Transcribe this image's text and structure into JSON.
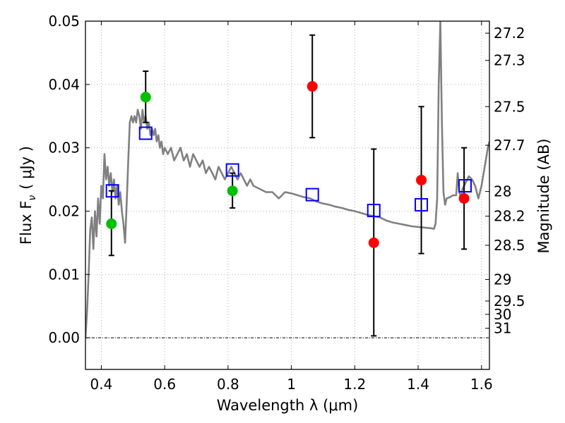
{
  "chart_data": {
    "type": "scatter",
    "title": "",
    "xlabel": "Wavelength  λ (μm)",
    "ylabel": "Flux  F",
    "ylabel_sub": "ν",
    "ylabel_unit": "( μJy )",
    "y2label": "Magnitude (AB)",
    "xlim": [
      0.35,
      1.625
    ],
    "ylim": [
      -0.005,
      0.05
    ],
    "grid": true,
    "x_ticks": [
      {
        "value": 0.4,
        "label": "0.4"
      },
      {
        "value": 0.6,
        "label": "0.6"
      },
      {
        "value": 0.8,
        "label": "0.8"
      },
      {
        "value": 1.0,
        "label": "1"
      },
      {
        "value": 1.2,
        "label": "1.2"
      },
      {
        "value": 1.4,
        "label": "1.4"
      },
      {
        "value": 1.6,
        "label": "1.6"
      }
    ],
    "y_ticks": [
      {
        "value": 0.0,
        "label": "0.00"
      },
      {
        "value": 0.01,
        "label": "0.01"
      },
      {
        "value": 0.02,
        "label": "0.02"
      },
      {
        "value": 0.03,
        "label": "0.03"
      },
      {
        "value": 0.04,
        "label": "0.04"
      },
      {
        "value": 0.05,
        "label": "0.05"
      }
    ],
    "y2_ticks": [
      {
        "label": "27.2",
        "flux": 0.0481
      },
      {
        "label": "27.3",
        "flux": 0.0438
      },
      {
        "label": "27.5",
        "flux": 0.0365
      },
      {
        "label": "27.7",
        "flux": 0.0304
      },
      {
        "label": "28",
        "flux": 0.0231
      },
      {
        "label": "28.2",
        "flux": 0.0192
      },
      {
        "label": "28.5",
        "flux": 0.0146
      },
      {
        "label": "29",
        "flux": 0.0092
      },
      {
        "label": "29.5",
        "flux": 0.0058
      },
      {
        "label": "30",
        "flux": 0.0037
      },
      {
        "label": "31",
        "flux": 0.0015
      }
    ],
    "colors": {
      "model_line": "#808080",
      "hst_points": "#00c000",
      "ir_points": "#ff0000",
      "model_squares": "#0000ff",
      "errorbar": "#000000",
      "grid": "#b0b0b0"
    },
    "model_spectrum": {
      "x": [
        0.35,
        0.355,
        0.36,
        0.365,
        0.37,
        0.375,
        0.38,
        0.385,
        0.39,
        0.395,
        0.4,
        0.405,
        0.41,
        0.415,
        0.42,
        0.425,
        0.43,
        0.435,
        0.44,
        0.445,
        0.45,
        0.455,
        0.46,
        0.465,
        0.47,
        0.475,
        0.48,
        0.485,
        0.49,
        0.495,
        0.5,
        0.505,
        0.51,
        0.515,
        0.52,
        0.525,
        0.53,
        0.535,
        0.54,
        0.545,
        0.55,
        0.555,
        0.56,
        0.565,
        0.57,
        0.575,
        0.58,
        0.585,
        0.59,
        0.595,
        0.6,
        0.61,
        0.62,
        0.63,
        0.64,
        0.65,
        0.66,
        0.67,
        0.68,
        0.69,
        0.7,
        0.71,
        0.72,
        0.73,
        0.74,
        0.75,
        0.76,
        0.77,
        0.78,
        0.79,
        0.8,
        0.81,
        0.82,
        0.83,
        0.84,
        0.85,
        0.86,
        0.87,
        0.88,
        0.9,
        0.92,
        0.94,
        0.96,
        0.98,
        1.0,
        1.02,
        1.04,
        1.06,
        1.08,
        1.1,
        1.12,
        1.14,
        1.16,
        1.18,
        1.2,
        1.22,
        1.24,
        1.26,
        1.28,
        1.3,
        1.32,
        1.34,
        1.36,
        1.38,
        1.4,
        1.42,
        1.44,
        1.45,
        1.455,
        1.46,
        1.465,
        1.47,
        1.475,
        1.48,
        1.485,
        1.49,
        1.5,
        1.51,
        1.52,
        1.525,
        1.53,
        1.535,
        1.54,
        1.55,
        1.56,
        1.57,
        1.58,
        1.59,
        1.6,
        1.61,
        1.62,
        1.625
      ],
      "y": [
        0.0,
        0.004,
        0.01,
        0.017,
        0.019,
        0.014,
        0.02,
        0.016,
        0.022,
        0.018,
        0.024,
        0.022,
        0.029,
        0.025,
        0.027,
        0.024,
        0.026,
        0.023,
        0.025,
        0.022,
        0.024,
        0.021,
        0.023,
        0.02,
        0.018,
        0.015,
        0.021,
        0.028,
        0.034,
        0.035,
        0.034,
        0.035,
        0.034,
        0.036,
        0.035,
        0.033,
        0.036,
        0.034,
        0.035,
        0.033,
        0.034,
        0.032,
        0.033,
        0.032,
        0.033,
        0.031,
        0.032,
        0.03,
        0.031,
        0.029,
        0.03,
        0.029,
        0.03,
        0.028,
        0.029,
        0.03,
        0.028,
        0.029,
        0.027,
        0.029,
        0.028,
        0.027,
        0.028,
        0.026,
        0.027,
        0.026,
        0.025,
        0.027,
        0.026,
        0.025,
        0.026,
        0.027,
        0.026,
        0.025,
        0.026,
        0.025,
        0.024,
        0.025,
        0.024,
        0.0235,
        0.023,
        0.023,
        0.022,
        0.023,
        0.0228,
        0.0225,
        0.0222,
        0.022,
        0.0215,
        0.0212,
        0.021,
        0.0207,
        0.0205,
        0.0202,
        0.02,
        0.0197,
        0.0194,
        0.0192,
        0.019,
        0.0185,
        0.0182,
        0.018,
        0.0178,
        0.0176,
        0.0175,
        0.0174,
        0.0173,
        0.0172,
        0.018,
        0.022,
        0.04,
        0.05,
        0.034,
        0.023,
        0.021,
        0.022,
        0.0222,
        0.0225,
        0.0225,
        0.026,
        0.023,
        0.022,
        0.0235,
        0.0245,
        0.0255,
        0.025,
        0.024,
        0.022,
        0.024,
        0.027,
        0.03,
        0.031
      ]
    },
    "series": [
      {
        "kind": "hst",
        "points": [
          {
            "x": 0.432,
            "y": 0.018
          },
          {
            "x": 0.54,
            "y": 0.038
          },
          {
            "x": 0.814,
            "y": 0.0232
          }
        ]
      },
      {
        "kind": "ir",
        "points": [
          {
            "x": 1.066,
            "y": 0.0397
          },
          {
            "x": 1.26,
            "y": 0.015
          },
          {
            "x": 1.41,
            "y": 0.0249
          },
          {
            "x": 1.545,
            "y": 0.022
          }
        ]
      },
      {
        "kind": "model-squares",
        "points": [
          {
            "x": 0.435,
            "y": 0.0232
          },
          {
            "x": 0.54,
            "y": 0.0323
          },
          {
            "x": 0.814,
            "y": 0.0265
          },
          {
            "x": 1.066,
            "y": 0.0226
          },
          {
            "x": 1.26,
            "y": 0.0201
          },
          {
            "x": 1.41,
            "y": 0.021
          },
          {
            "x": 1.548,
            "y": 0.024
          }
        ]
      }
    ],
    "errorbars": [
      {
        "x": 0.432,
        "low": 0.013,
        "high": 0.0232
      },
      {
        "x": 0.54,
        "low": 0.034,
        "high": 0.0421
      },
      {
        "x": 0.814,
        "low": 0.0205,
        "high": 0.026
      },
      {
        "x": 1.066,
        "low": 0.0316,
        "high": 0.0478
      },
      {
        "x": 1.26,
        "low": 0.0003,
        "high": 0.0298
      },
      {
        "x": 1.41,
        "low": 0.0133,
        "high": 0.0365
      },
      {
        "x": 1.545,
        "low": 0.014,
        "high": 0.03
      }
    ]
  }
}
